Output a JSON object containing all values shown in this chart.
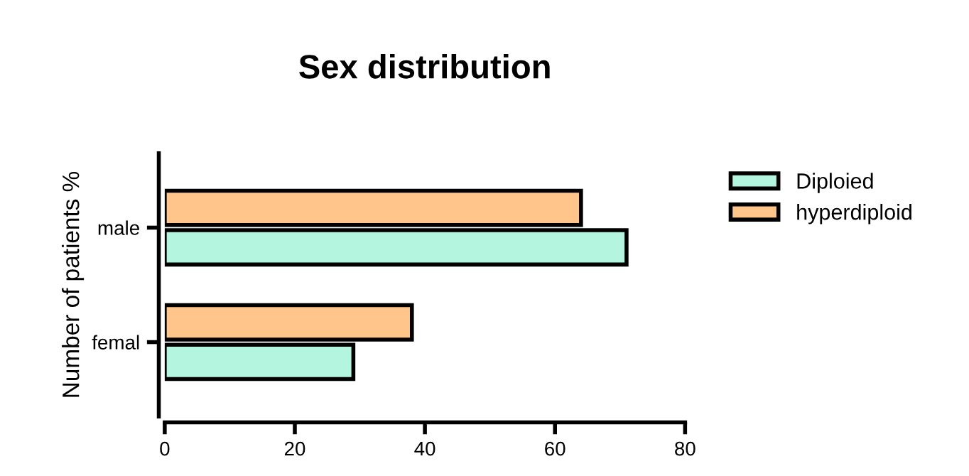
{
  "chart_data": {
    "type": "bar",
    "orientation": "horizontal",
    "title": "Sex distribution",
    "ylabel": "Number of patients %",
    "categories": [
      "male",
      "femal"
    ],
    "series": [
      {
        "name": "Diploied",
        "color": "#b3f5df",
        "values": [
          71,
          29
        ]
      },
      {
        "name": "hyperdiploid",
        "color": "#ffc58a",
        "values": [
          64,
          38
        ]
      }
    ],
    "xlim": [
      0,
      80
    ],
    "xticks": [
      0,
      20,
      40,
      60,
      80
    ],
    "grid": false,
    "legend": "right"
  }
}
